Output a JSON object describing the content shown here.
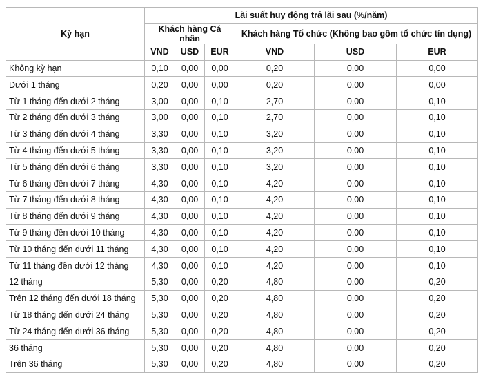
{
  "header": {
    "term": "Kỳ hạn",
    "title": "Lãi suất huy động trả lãi sau (%/năm)",
    "individual": "Khách hàng Cá nhân",
    "organization": "Khách hàng Tổ chức (Không bao gồm tổ chức tín dụng)",
    "currencies": [
      "VND",
      "USD",
      "EUR",
      "VND",
      "USD",
      "EUR"
    ]
  },
  "rows": [
    {
      "term": "Không kỳ hạn",
      "values": [
        "0,10",
        "0,00",
        "0,00",
        "0,20",
        "0,00",
        "0,00"
      ]
    },
    {
      "term": "Dưới 1 tháng",
      "values": [
        "0,20",
        "0,00",
        "0,00",
        "0,20",
        "0,00",
        "0,00"
      ]
    },
    {
      "term": "Từ 1 tháng đến dưới 2 tháng",
      "values": [
        "3,00",
        "0,00",
        "0,10",
        "2,70",
        "0,00",
        "0,10"
      ]
    },
    {
      "term": "Từ 2 tháng đến dưới 3 tháng",
      "values": [
        "3,00",
        "0,00",
        "0,10",
        "2,70",
        "0,00",
        "0,10"
      ]
    },
    {
      "term": "Từ 3 tháng đến dưới 4 tháng",
      "values": [
        "3,30",
        "0,00",
        "0,10",
        "3,20",
        "0,00",
        "0,10"
      ]
    },
    {
      "term": "Từ 4 tháng đến dưới 5 tháng",
      "values": [
        "3,30",
        "0,00",
        "0,10",
        "3,20",
        "0,00",
        "0,10"
      ]
    },
    {
      "term": "Từ 5 tháng đến dưới 6 tháng",
      "values": [
        "3,30",
        "0,00",
        "0,10",
        "3,20",
        "0,00",
        "0,10"
      ]
    },
    {
      "term": "Từ 6 tháng đến dưới 7 tháng",
      "values": [
        "4,30",
        "0,00",
        "0,10",
        "4,20",
        "0,00",
        "0,10"
      ]
    },
    {
      "term": "Từ 7 tháng đến dưới 8 tháng",
      "values": [
        "4,30",
        "0,00",
        "0,10",
        "4,20",
        "0,00",
        "0,10"
      ]
    },
    {
      "term": "Từ 8 tháng đến dưới 9 tháng",
      "values": [
        "4,30",
        "0,00",
        "0,10",
        "4,20",
        "0,00",
        "0,10"
      ]
    },
    {
      "term": "Từ 9 tháng đến dưới 10 tháng",
      "values": [
        "4,30",
        "0,00",
        "0,10",
        "4,20",
        "0,00",
        "0,10"
      ]
    },
    {
      "term": "Từ 10 tháng đến dưới 11 tháng",
      "values": [
        "4,30",
        "0,00",
        "0,10",
        "4,20",
        "0,00",
        "0,10"
      ]
    },
    {
      "term": "Từ 11 tháng đến dưới 12 tháng",
      "values": [
        "4,30",
        "0,00",
        "0,10",
        "4,20",
        "0,00",
        "0,10"
      ]
    },
    {
      "term": "12 tháng",
      "values": [
        "5,30",
        "0,00",
        "0,20",
        "4,80",
        "0,00",
        "0,20"
      ]
    },
    {
      "term": "Trên 12 tháng đến dưới 18 tháng",
      "values": [
        "5,30",
        "0,00",
        "0,20",
        "4,80",
        "0,00",
        "0,20"
      ]
    },
    {
      "term": "Từ 18 tháng đến dưới 24 tháng",
      "values": [
        "5,30",
        "0,00",
        "0,20",
        "4,80",
        "0,00",
        "0,20"
      ]
    },
    {
      "term": "Từ 24 tháng đến dưới 36 tháng",
      "values": [
        "5,30",
        "0,00",
        "0,20",
        "4,80",
        "0,00",
        "0,20"
      ]
    },
    {
      "term": "36 tháng",
      "values": [
        "5,30",
        "0,00",
        "0,20",
        "4,80",
        "0,00",
        "0,20"
      ]
    },
    {
      "term": "Trên 36 tháng",
      "values": [
        "5,30",
        "0,00",
        "0,20",
        "4,80",
        "0,00",
        "0,20"
      ]
    }
  ]
}
